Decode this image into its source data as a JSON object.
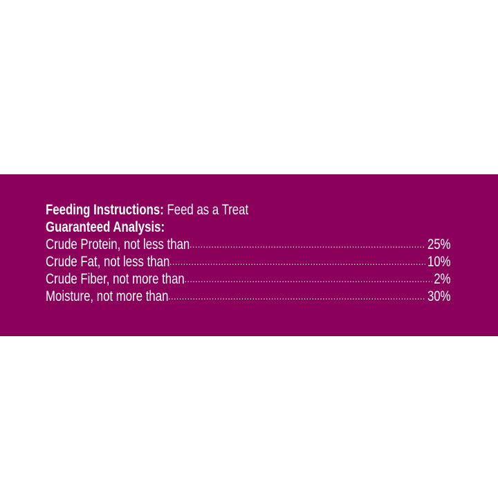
{
  "band_color": "#8b005a",
  "feeding": {
    "label": "Feeding Instructions:",
    "value": "Feed as a Treat"
  },
  "analysis": {
    "title": "Guaranteed Analysis:",
    "rows": [
      {
        "label": "Crude Protein, not less than",
        "value": "25%"
      },
      {
        "label": "Crude Fat, not less than",
        "value": "10%"
      },
      {
        "label": "Crude Fiber, not more than",
        "value": "2%"
      },
      {
        "label": "Moisture, not more than",
        "value": "30%"
      }
    ]
  }
}
